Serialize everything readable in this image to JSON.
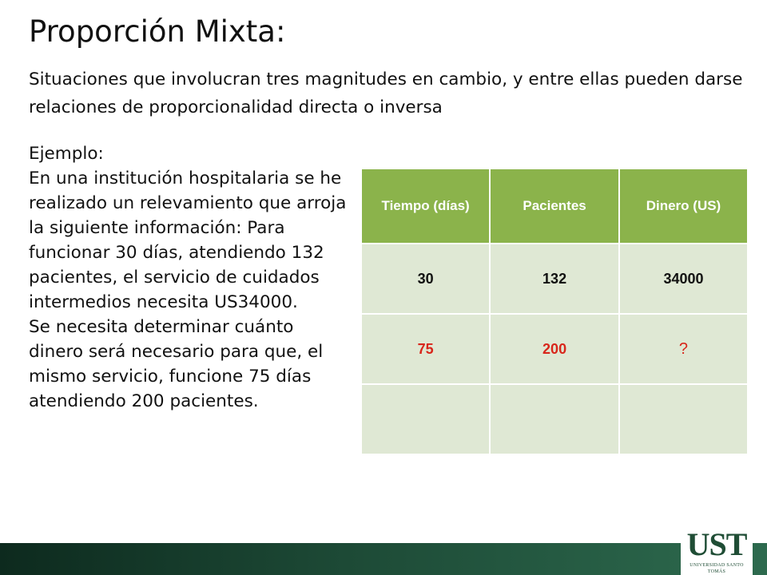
{
  "title": "Proporción Mixta:",
  "subtitle": "Situaciones que involucran tres magnitudes en cambio, y entre ellas pueden darse relaciones de proporcionalidad directa o inversa",
  "example": {
    "label": "Ejemplo:",
    "paragraph1": "En una institución hospitalaria se he realizado un relevamiento que arroja la siguiente información: Para funcionar 30 días, atendiendo 132 pacientes, el servicio de cuidados intermedios necesita US34000.",
    "paragraph2": "Se necesita determinar cuánto dinero será necesario para que, el mismo servicio, funcione 75 días atendiendo 200 pacientes."
  },
  "table": {
    "headers": [
      "Tiempo (días)",
      "Pacientes",
      "Dinero (US)"
    ],
    "rows": [
      [
        "30",
        "132",
        "34000"
      ],
      [
        "75",
        "200",
        "?"
      ],
      [
        "",
        "",
        ""
      ]
    ],
    "header_color": "#8bb34b",
    "cell_color": "#dfe8d4",
    "highlight_color": "#d8261b"
  },
  "logo": {
    "text": "UST",
    "subtext": "UNIVERSIDAD SANTO TOMÁS"
  }
}
